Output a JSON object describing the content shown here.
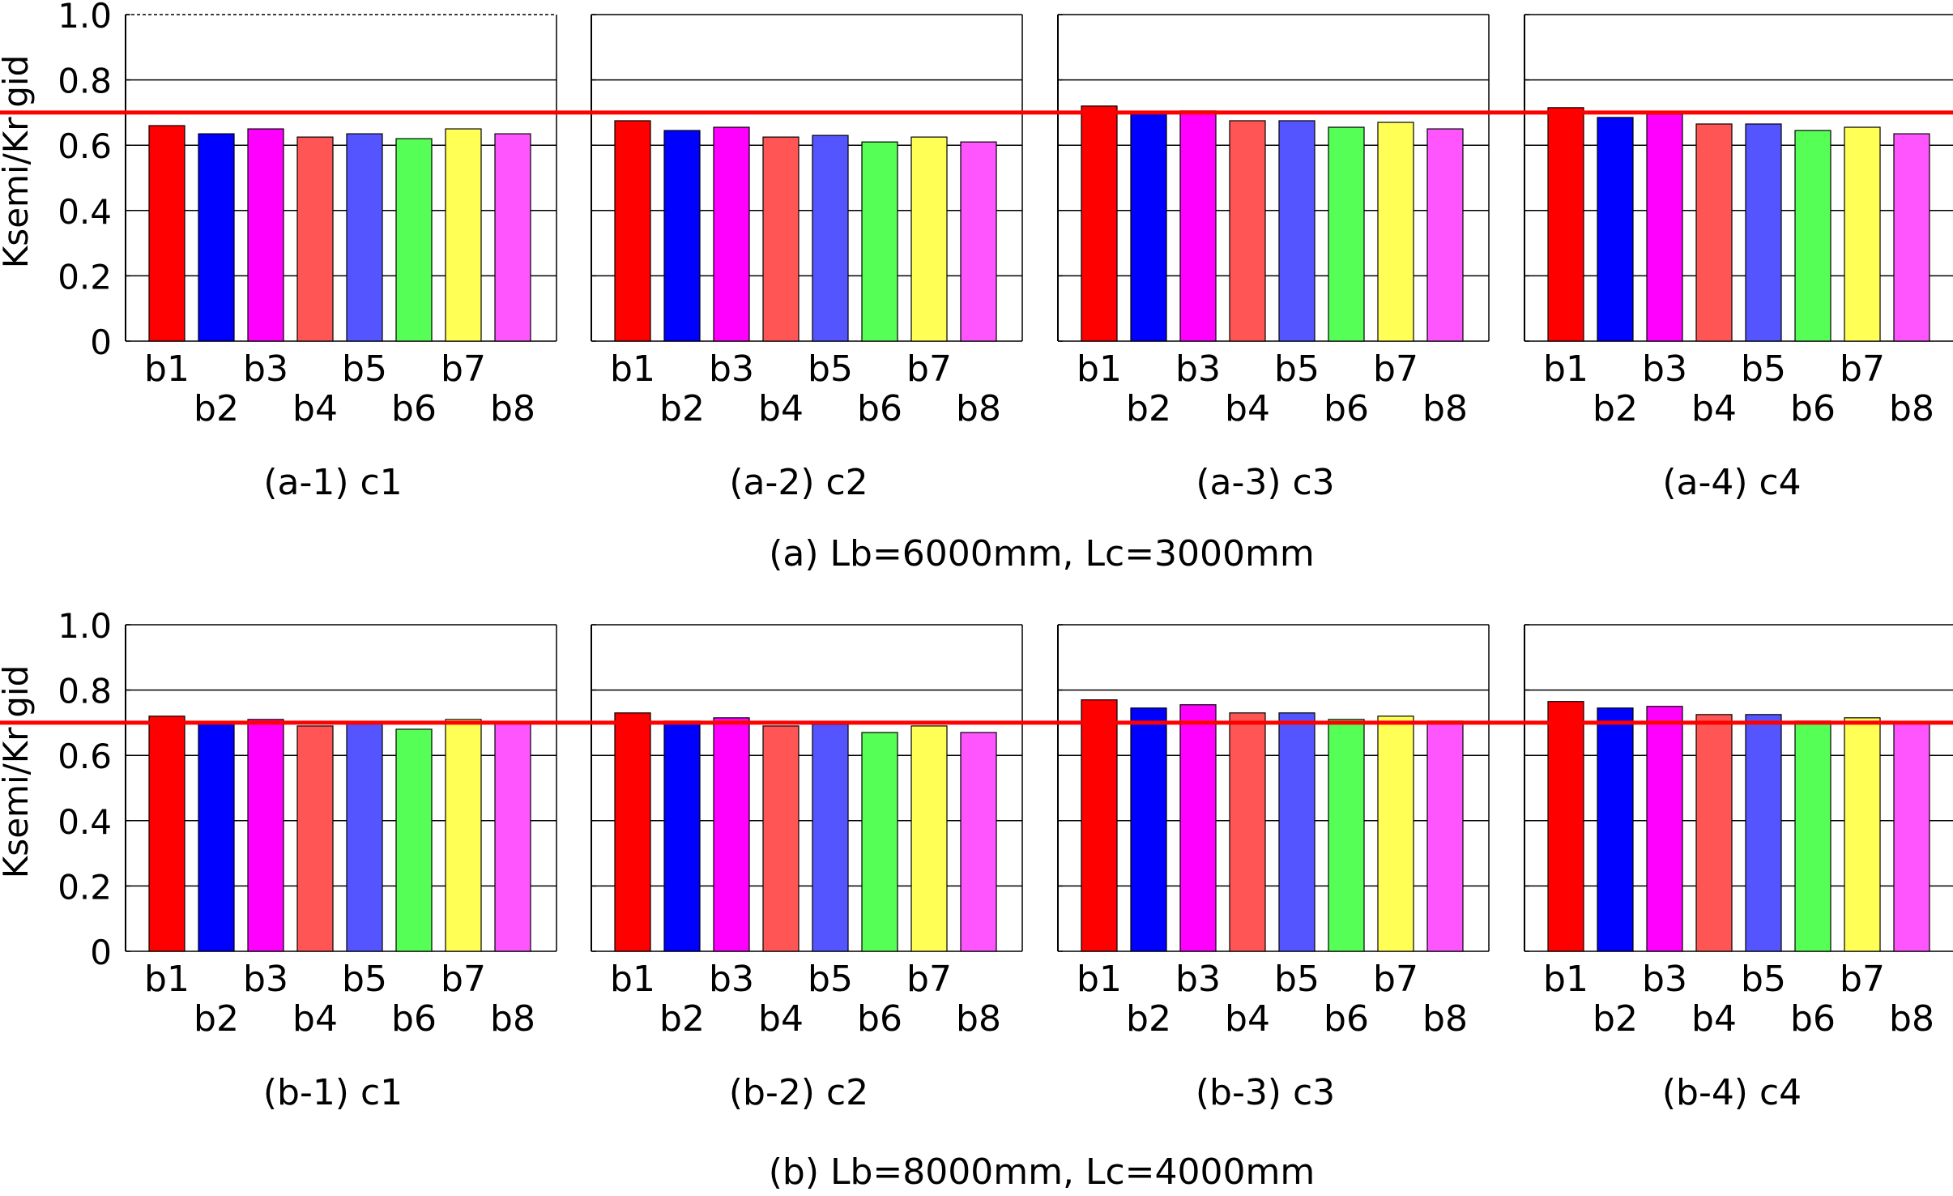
{
  "figure": {
    "ylabel": "Ksemi/Krigid",
    "yticks": [
      "0",
      "0.2",
      "0.4",
      "0.6",
      "0.8",
      "1.0"
    ],
    "reference_color": "#ff0000",
    "bar_colors": [
      "#ff0000",
      "#0000ff",
      "#ff00ff",
      "#ff5555",
      "#5555ff",
      "#55ff55",
      "#ffff55",
      "#ff55ff"
    ],
    "group_labels": [
      "(a) Lb=6000mm, Lc=3000mm",
      "(b) Lb=8000mm, Lc=4000mm"
    ]
  },
  "chart_data": [
    {
      "type": "bar",
      "title": "(a-1) c1",
      "categories": [
        "b1",
        "b2",
        "b3",
        "b4",
        "b5",
        "b6",
        "b7",
        "b8"
      ],
      "values": [
        0.66,
        0.635,
        0.65,
        0.625,
        0.635,
        0.62,
        0.65,
        0.635
      ],
      "ylabel": "Ksemi/Krigid",
      "ylim": [
        0,
        1.0
      ],
      "reference_line": 0.7,
      "grid": true
    },
    {
      "type": "bar",
      "title": "(a-2) c2",
      "categories": [
        "b1",
        "b2",
        "b3",
        "b4",
        "b5",
        "b6",
        "b7",
        "b8"
      ],
      "values": [
        0.675,
        0.645,
        0.655,
        0.625,
        0.63,
        0.61,
        0.625,
        0.61
      ],
      "ylabel": "",
      "ylim": [
        0,
        1.0
      ],
      "reference_line": 0.7,
      "grid": true
    },
    {
      "type": "bar",
      "title": "(a-3) c3",
      "categories": [
        "b1",
        "b2",
        "b3",
        "b4",
        "b5",
        "b6",
        "b7",
        "b8"
      ],
      "values": [
        0.72,
        0.695,
        0.705,
        0.675,
        0.675,
        0.655,
        0.67,
        0.65
      ],
      "ylabel": "",
      "ylim": [
        0,
        1.0
      ],
      "reference_line": 0.7,
      "grid": true
    },
    {
      "type": "bar",
      "title": "(a-4) c4",
      "categories": [
        "b1",
        "b2",
        "b3",
        "b4",
        "b5",
        "b6",
        "b7",
        "b8"
      ],
      "values": [
        0.715,
        0.685,
        0.695,
        0.665,
        0.665,
        0.645,
        0.655,
        0.635
      ],
      "ylabel": "",
      "ylim": [
        0,
        1.0
      ],
      "reference_line": 0.7,
      "grid": true
    },
    {
      "type": "bar",
      "title": "(b-1) c1",
      "categories": [
        "b1",
        "b2",
        "b3",
        "b4",
        "b5",
        "b6",
        "b7",
        "b8"
      ],
      "values": [
        0.72,
        0.695,
        0.71,
        0.69,
        0.7,
        0.68,
        0.71,
        0.7
      ],
      "ylabel": "Ksemi/Krigid",
      "ylim": [
        0,
        1.0
      ],
      "reference_line": 0.7,
      "grid": true
    },
    {
      "type": "bar",
      "title": "(b-2) c2",
      "categories": [
        "b1",
        "b2",
        "b3",
        "b4",
        "b5",
        "b6",
        "b7",
        "b8"
      ],
      "values": [
        0.73,
        0.705,
        0.715,
        0.69,
        0.695,
        0.67,
        0.69,
        0.67
      ],
      "ylabel": "",
      "ylim": [
        0,
        1.0
      ],
      "reference_line": 0.7,
      "grid": true
    },
    {
      "type": "bar",
      "title": "(b-3) c3",
      "categories": [
        "b1",
        "b2",
        "b3",
        "b4",
        "b5",
        "b6",
        "b7",
        "b8"
      ],
      "values": [
        0.77,
        0.745,
        0.755,
        0.73,
        0.73,
        0.71,
        0.72,
        0.705
      ],
      "ylabel": "",
      "ylim": [
        0,
        1.0
      ],
      "reference_line": 0.7,
      "grid": true
    },
    {
      "type": "bar",
      "title": "(b-4) c4",
      "categories": [
        "b1",
        "b2",
        "b3",
        "b4",
        "b5",
        "b6",
        "b7",
        "b8"
      ],
      "values": [
        0.765,
        0.745,
        0.75,
        0.725,
        0.725,
        0.705,
        0.715,
        0.7
      ],
      "ylabel": "",
      "ylim": [
        0,
        1.0
      ],
      "reference_line": 0.7,
      "grid": true
    }
  ]
}
